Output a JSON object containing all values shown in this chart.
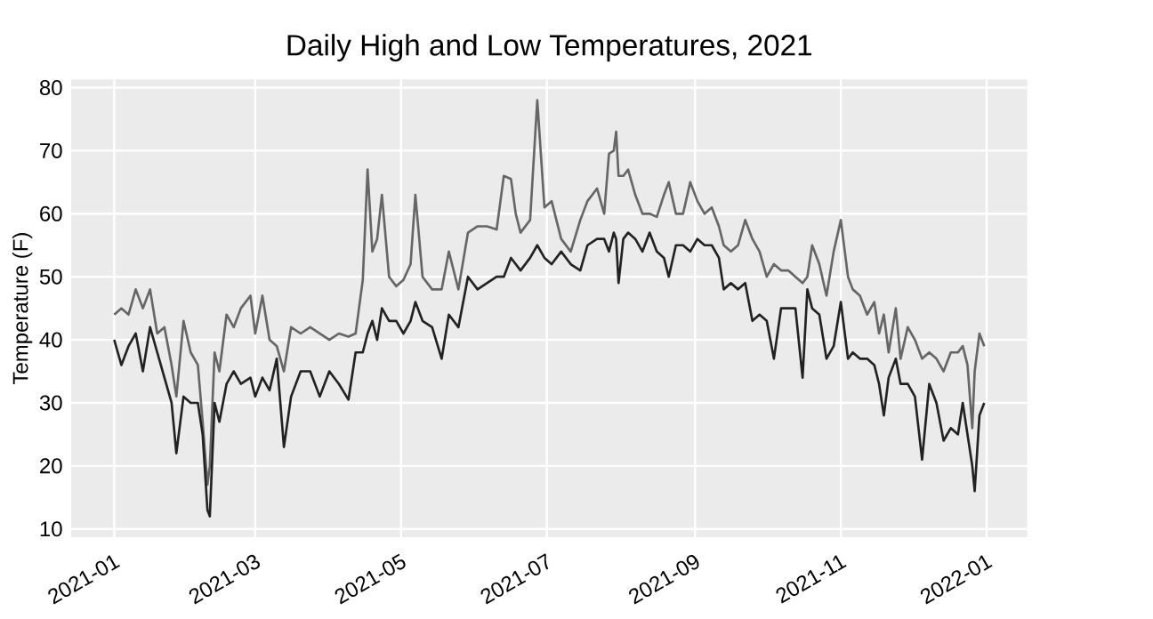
{
  "chart_data": {
    "type": "line",
    "title": "Daily High and Low Temperatures, 2021",
    "ylabel": "Temperature (F)",
    "x": [
      "2021-01-01",
      "2021-01-04",
      "2021-01-07",
      "2021-01-10",
      "2021-01-13",
      "2021-01-16",
      "2021-01-19",
      "2021-01-22",
      "2021-01-25",
      "2021-01-27",
      "2021-01-30",
      "2021-02-02",
      "2021-02-05",
      "2021-02-07",
      "2021-02-09",
      "2021-02-10",
      "2021-02-12",
      "2021-02-14",
      "2021-02-17",
      "2021-02-20",
      "2021-02-23",
      "2021-02-27",
      "2021-03-01",
      "2021-03-04",
      "2021-03-07",
      "2021-03-10",
      "2021-03-13",
      "2021-03-16",
      "2021-03-20",
      "2021-03-24",
      "2021-03-28",
      "2021-04-01",
      "2021-04-05",
      "2021-04-09",
      "2021-04-12",
      "2021-04-15",
      "2021-04-17",
      "2021-04-19",
      "2021-04-21",
      "2021-04-23",
      "2021-04-26",
      "2021-04-29",
      "2021-05-02",
      "2021-05-05",
      "2021-05-07",
      "2021-05-10",
      "2021-05-14",
      "2021-05-18",
      "2021-05-21",
      "2021-05-25",
      "2021-05-29",
      "2021-06-02",
      "2021-06-06",
      "2021-06-10",
      "2021-06-13",
      "2021-06-16",
      "2021-06-18",
      "2021-06-20",
      "2021-06-24",
      "2021-06-27",
      "2021-06-30",
      "2021-07-03",
      "2021-07-07",
      "2021-07-11",
      "2021-07-15",
      "2021-07-18",
      "2021-07-22",
      "2021-07-25",
      "2021-07-27",
      "2021-07-29",
      "2021-07-30",
      "2021-07-31",
      "2021-08-02",
      "2021-08-04",
      "2021-08-07",
      "2021-08-10",
      "2021-08-13",
      "2021-08-16",
      "2021-08-19",
      "2021-08-21",
      "2021-08-24",
      "2021-08-27",
      "2021-08-30",
      "2021-09-02",
      "2021-09-05",
      "2021-09-08",
      "2021-09-11",
      "2021-09-13",
      "2021-09-16",
      "2021-09-19",
      "2021-09-22",
      "2021-09-25",
      "2021-09-28",
      "2021-10-01",
      "2021-10-04",
      "2021-10-07",
      "2021-10-10",
      "2021-10-13",
      "2021-10-16",
      "2021-10-18",
      "2021-10-20",
      "2021-10-23",
      "2021-10-26",
      "2021-10-29",
      "2021-11-01",
      "2021-11-04",
      "2021-11-06",
      "2021-11-09",
      "2021-11-12",
      "2021-11-15",
      "2021-11-17",
      "2021-11-19",
      "2021-11-21",
      "2021-11-24",
      "2021-11-26",
      "2021-11-29",
      "2021-12-02",
      "2021-12-05",
      "2021-12-08",
      "2021-12-11",
      "2021-12-14",
      "2021-12-17",
      "2021-12-20",
      "2021-12-22",
      "2021-12-24",
      "2021-12-26",
      "2021-12-27",
      "2021-12-29",
      "2021-12-31"
    ],
    "series": [
      {
        "color": "#666666",
        "values": [
          44,
          45,
          44,
          48,
          45,
          48,
          41,
          42,
          36,
          31,
          43,
          38,
          36,
          27,
          17,
          20,
          38,
          35,
          44,
          42,
          45,
          47,
          41,
          47,
          40,
          39,
          35,
          42,
          41,
          42,
          41,
          40,
          41,
          40.5,
          41,
          49.5,
          67,
          54,
          56,
          63,
          50,
          48.5,
          49.5,
          52,
          63,
          50,
          48,
          48,
          54,
          48,
          57,
          58,
          58,
          57.5,
          66,
          65.5,
          60,
          57,
          59,
          78,
          61,
          62,
          56,
          54,
          59,
          62,
          64,
          60,
          69.5,
          70,
          73,
          66,
          66,
          67,
          63,
          60,
          60,
          59.5,
          63,
          65,
          60,
          60,
          65,
          62,
          60,
          61,
          58,
          55,
          54,
          55,
          59,
          56,
          54,
          50,
          52,
          51,
          51,
          50,
          49,
          50,
          55,
          52,
          47,
          54,
          59,
          50,
          48,
          47,
          44,
          46,
          41,
          44,
          38,
          45,
          37,
          42,
          40,
          37,
          38,
          37,
          35,
          38,
          38,
          39,
          36,
          26,
          35,
          41,
          39
        ]
      },
      {
        "color": "#222222",
        "values": [
          40,
          36,
          39,
          41,
          35,
          42,
          38,
          34,
          30,
          22,
          31,
          30,
          30,
          25,
          13,
          12,
          30,
          27,
          33,
          35,
          33,
          34,
          31,
          34,
          32,
          37,
          23,
          31,
          35,
          35,
          31,
          35,
          33,
          30.5,
          38,
          38,
          41,
          43,
          40,
          45,
          43,
          43,
          41,
          43,
          46,
          43,
          42,
          37,
          44,
          42,
          50,
          48,
          49,
          50,
          50,
          53,
          52,
          51,
          53,
          55,
          53,
          52,
          54,
          52,
          51,
          55,
          56,
          56,
          54,
          57,
          56,
          49,
          56,
          57,
          56,
          54,
          57,
          54,
          53,
          50,
          55,
          55,
          54,
          56,
          55,
          55,
          53,
          48,
          49,
          48,
          49,
          43,
          44,
          43,
          37,
          45,
          45,
          45,
          34,
          48,
          45,
          44,
          37,
          39,
          46,
          37,
          38,
          37,
          37,
          36,
          33,
          28,
          34,
          37,
          33,
          33,
          31,
          21,
          33,
          30,
          24,
          26,
          25,
          30,
          25,
          20,
          16,
          28,
          30
        ]
      }
    ],
    "xlim": [
      "2020-12-14",
      "2022-01-18"
    ],
    "ylim": [
      8.7,
      81.3
    ],
    "xticks": [
      "2021-01",
      "2021-03",
      "2021-05",
      "2021-07",
      "2021-09",
      "2021-11",
      "2022-01"
    ],
    "yticks": [
      10,
      20,
      30,
      40,
      50,
      60,
      70,
      80
    ],
    "grid": true
  }
}
